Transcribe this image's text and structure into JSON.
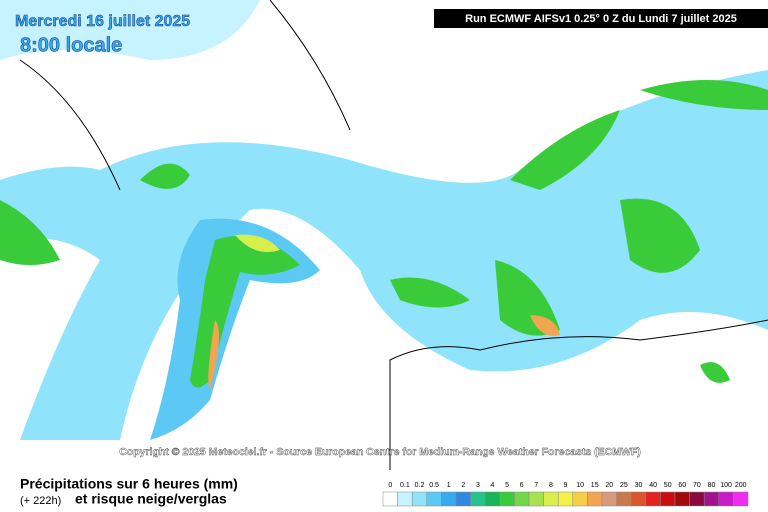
{
  "header": {
    "date": "Mercredi 16 juillet 2025",
    "time": "8:00 locale",
    "run": "Run ECMWF AIFSv1 0.25° 0 Z du Lundi 7 juillet 2025"
  },
  "copyright": "Copyright © 2025 Meteociel.fr - Source European Centre for Medium-Range Weather Forecasts (ECMWF)",
  "legend": {
    "title": "Précipitations sur 6 heures (mm)",
    "lead": "(+ 222h)",
    "subtitle": "et risque neige/verglas",
    "scale": [
      {
        "value": 0,
        "color": "#ffffff"
      },
      {
        "value": 0.1,
        "color": "#c6f3ff"
      },
      {
        "value": 0.2,
        "color": "#8fe3fb"
      },
      {
        "value": 0.5,
        "color": "#5cc9f5"
      },
      {
        "value": 1,
        "color": "#3aa8ef"
      },
      {
        "value": 2,
        "color": "#2d8ae0"
      },
      {
        "value": 3,
        "color": "#23c48c"
      },
      {
        "value": 4,
        "color": "#18b45a"
      },
      {
        "value": 5,
        "color": "#3acb3a"
      },
      {
        "value": 6,
        "color": "#72d84a"
      },
      {
        "value": 7,
        "color": "#a6e34e"
      },
      {
        "value": 8,
        "color": "#d8ee4c"
      },
      {
        "value": 9,
        "color": "#f4f04a"
      },
      {
        "value": 10,
        "color": "#f6cf47"
      },
      {
        "value": 15,
        "color": "#f2a550"
      },
      {
        "value": 20,
        "color": "#d99a7a"
      },
      {
        "value": 25,
        "color": "#c97a4c"
      },
      {
        "value": 30,
        "color": "#d8552e"
      },
      {
        "value": 40,
        "color": "#e52222"
      },
      {
        "value": 50,
        "color": "#c80e0e"
      },
      {
        "value": 60,
        "color": "#a10a0a"
      },
      {
        "value": 70,
        "color": "#8a0a40"
      },
      {
        "value": 80,
        "color": "#a0128e"
      },
      {
        "value": 100,
        "color": "#c81cc8"
      },
      {
        "value": 200,
        "color": "#f02cf0"
      }
    ]
  }
}
